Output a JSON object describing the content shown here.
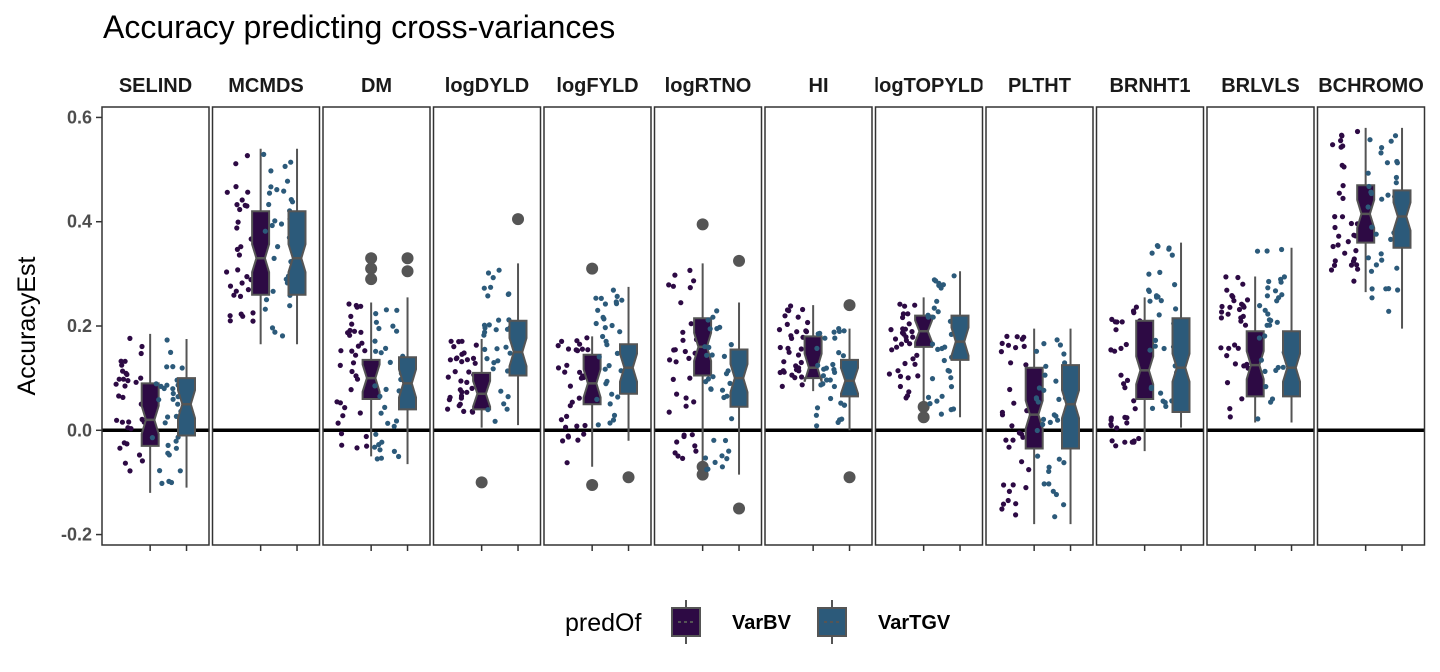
{
  "chart_data": {
    "type": "boxplot",
    "title": "Accuracy predicting cross-variances",
    "ylabel": "AccuracyEst",
    "xlabel": "",
    "ylim": [
      -0.22,
      0.62
    ],
    "yticks": [
      -0.2,
      0.0,
      0.2,
      0.4,
      0.6
    ],
    "ytick_labels": [
      "-0.2",
      "0.0",
      "0.2",
      "0.4",
      "0.6"
    ],
    "hline": 0.0,
    "grid": false,
    "facet_layout": "12 panels in one row",
    "legend": {
      "title": "predOf",
      "position": "bottom",
      "entries": [
        {
          "label": "VarBV",
          "color": "#2d0a44"
        },
        {
          "label": "VarTGV",
          "color": "#2c5a7a"
        }
      ]
    },
    "series_colors": {
      "VarBV": "#2d0a44",
      "VarTGV": "#2c5a7a"
    },
    "facets": [
      {
        "label": "SELIND",
        "VarBV": {
          "lower": -0.12,
          "q1": -0.03,
          "median": 0.02,
          "q3": 0.09,
          "upper": 0.185,
          "outliers": []
        },
        "VarTGV": {
          "lower": -0.11,
          "q1": -0.01,
          "median": 0.05,
          "q3": 0.1,
          "upper": 0.175,
          "outliers": []
        }
      },
      {
        "label": "MCMDS",
        "VarBV": {
          "lower": 0.165,
          "q1": 0.26,
          "median": 0.33,
          "q3": 0.42,
          "upper": 0.54,
          "outliers": []
        },
        "VarTGV": {
          "lower": 0.165,
          "q1": 0.26,
          "median": 0.33,
          "q3": 0.42,
          "upper": 0.54,
          "outliers": []
        }
      },
      {
        "label": "DM",
        "VarBV": {
          "lower": -0.05,
          "q1": 0.06,
          "median": 0.1,
          "q3": 0.135,
          "upper": 0.245,
          "outliers": [
            0.29,
            0.31,
            0.33
          ]
        },
        "VarTGV": {
          "lower": -0.065,
          "q1": 0.04,
          "median": 0.09,
          "q3": 0.14,
          "upper": 0.255,
          "outliers": [
            0.305,
            0.33
          ]
        }
      },
      {
        "label": "logDYLD",
        "VarBV": {
          "lower": 0.005,
          "q1": 0.04,
          "median": 0.07,
          "q3": 0.11,
          "upper": 0.175,
          "outliers": [
            -0.1
          ]
        },
        "VarTGV": {
          "lower": 0.01,
          "q1": 0.105,
          "median": 0.15,
          "q3": 0.21,
          "upper": 0.32,
          "outliers": [
            0.405
          ]
        }
      },
      {
        "label": "logFYLD",
        "VarBV": {
          "lower": -0.07,
          "q1": 0.05,
          "median": 0.09,
          "q3": 0.145,
          "upper": 0.18,
          "outliers": [
            -0.105,
            0.31
          ]
        },
        "VarTGV": {
          "lower": -0.02,
          "q1": 0.07,
          "median": 0.12,
          "q3": 0.165,
          "upper": 0.275,
          "outliers": [
            -0.09
          ]
        }
      },
      {
        "label": "logRTNO",
        "VarBV": {
          "lower": -0.06,
          "q1": 0.105,
          "median": 0.16,
          "q3": 0.215,
          "upper": 0.32,
          "outliers": [
            -0.07,
            -0.085,
            0.395
          ]
        },
        "VarTGV": {
          "lower": -0.085,
          "q1": 0.045,
          "median": 0.1,
          "q3": 0.155,
          "upper": 0.245,
          "outliers": [
            -0.15,
            0.325
          ]
        }
      },
      {
        "label": "HI",
        "VarBV": {
          "lower": 0.075,
          "q1": 0.1,
          "median": 0.12,
          "q3": 0.18,
          "upper": 0.24,
          "outliers": []
        },
        "VarTGV": {
          "lower": 0.0,
          "q1": 0.065,
          "median": 0.095,
          "q3": 0.135,
          "upper": 0.195,
          "outliers": [
            -0.09,
            0.24
          ]
        }
      },
      {
        "label": "logTOPYLD",
        "VarBV": {
          "lower": 0.055,
          "q1": 0.16,
          "median": 0.19,
          "q3": 0.22,
          "upper": 0.255,
          "outliers": [
            0.025,
            0.045
          ]
        },
        "VarTGV": {
          "lower": 0.025,
          "q1": 0.135,
          "median": 0.17,
          "q3": 0.22,
          "upper": 0.305,
          "outliers": []
        }
      },
      {
        "label": "PLTHT",
        "VarBV": {
          "lower": -0.18,
          "q1": -0.035,
          "median": 0.03,
          "q3": 0.12,
          "upper": 0.195,
          "outliers": []
        },
        "VarTGV": {
          "lower": -0.18,
          "q1": -0.035,
          "median": 0.05,
          "q3": 0.125,
          "upper": 0.195,
          "outliers": []
        }
      },
      {
        "label": "BRNHT1",
        "VarBV": {
          "lower": -0.04,
          "q1": 0.06,
          "median": 0.115,
          "q3": 0.21,
          "upper": 0.255,
          "outliers": []
        },
        "VarTGV": {
          "lower": 0.005,
          "q1": 0.035,
          "median": 0.12,
          "q3": 0.215,
          "upper": 0.36,
          "outliers": []
        }
      },
      {
        "label": "BRLVLS",
        "VarBV": {
          "lower": 0.015,
          "q1": 0.065,
          "median": 0.125,
          "q3": 0.19,
          "upper": 0.295,
          "outliers": []
        },
        "VarTGV": {
          "lower": 0.015,
          "q1": 0.065,
          "median": 0.12,
          "q3": 0.19,
          "upper": 0.35,
          "outliers": []
        }
      },
      {
        "label": "BCHROMO",
        "VarBV": {
          "lower": 0.265,
          "q1": 0.36,
          "median": 0.415,
          "q3": 0.47,
          "upper": 0.58,
          "outliers": []
        },
        "VarTGV": {
          "lower": 0.195,
          "q1": 0.35,
          "median": 0.41,
          "q3": 0.46,
          "upper": 0.58,
          "outliers": []
        }
      }
    ]
  }
}
